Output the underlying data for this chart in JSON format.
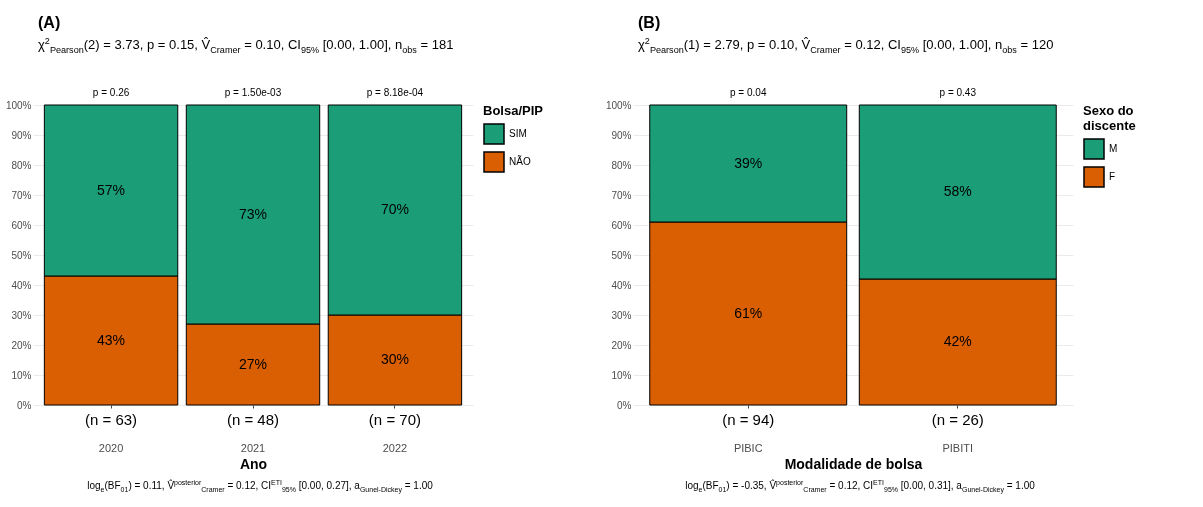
{
  "chart_data": [
    {
      "type": "bar",
      "title": "(A)",
      "subtitle": "χ$^{2}$$_{Pearson}$(2) = 3.73, p = 0.15, V̂$_{Cramer}$ = 0.10, CI$_{95%}$ [0.00, 1.00], n$_{obs}$ = 181",
      "xlabel": "Ano",
      "legend_title": "Bolsa/PIP",
      "categories": [
        "2020",
        "2021",
        "2022"
      ],
      "stacked": true,
      "series": [
        {
          "name": "NÃO",
          "color": "#d95f02",
          "values": [
            43,
            27,
            30
          ],
          "value_labels": [
            "43%",
            "27%",
            "30%"
          ]
        },
        {
          "name": "SIM",
          "color": "#1b9e77",
          "values": [
            57,
            73,
            70
          ],
          "value_labels": [
            "57%",
            "73%",
            "70%"
          ]
        }
      ],
      "ylim": [
        0,
        100
      ],
      "yticks": [
        {
          "value": 0,
          "label": "0%"
        },
        {
          "value": 10,
          "label": "10%"
        },
        {
          "value": 20,
          "label": "20%"
        },
        {
          "value": 30,
          "label": "30%"
        },
        {
          "value": 40,
          "label": "40%"
        },
        {
          "value": 50,
          "label": "50%"
        },
        {
          "value": 60,
          "label": "60%"
        },
        {
          "value": 70,
          "label": "70%"
        },
        {
          "value": 80,
          "label": "80%"
        },
        {
          "value": 90,
          "label": "90%"
        },
        {
          "value": 100,
          "label": "100%"
        }
      ],
      "grid": "y",
      "legend": "right",
      "annotations": [
        {
          "text": "p = 0.26",
          "x": "2020",
          "y": 100
        },
        {
          "text": "p = 1.50e-03",
          "x": "2021",
          "y": 100
        },
        {
          "text": "p = 8.18e-04",
          "x": "2022",
          "y": 100
        },
        {
          "text": "(n = 63)",
          "x": "2020",
          "y": 0
        },
        {
          "text": "(n = 48)",
          "x": "2021",
          "y": 0
        },
        {
          "text": "(n = 70)",
          "x": "2022",
          "y": 0
        },
        "log$_{e}$(BF$_{01}$) = 0.11, V̂$^{posterior}$$_{Cramer}$ = 0.12, CI$^{ETI}$$_{95%}$ [0.00, 0.27], a$_{Gunel-Dickey}$ = 1.00"
      ]
    },
    {
      "type": "bar",
      "title": "(B)",
      "subtitle": "χ$^{2}$$_{Pearson}$(1) = 2.79, p = 0.10, V̂$_{Cramer}$ = 0.12, CI$_{95%}$ [0.00, 1.00], n$_{obs}$ = 120",
      "xlabel": "Modalidade de bolsa",
      "legend_title": "Sexo do discente",
      "categories": [
        "PIBIC",
        "PIBITI"
      ],
      "stacked": true,
      "series": [
        {
          "name": "F",
          "color": "#d95f02",
          "values": [
            61,
            42
          ],
          "value_labels": [
            "61%",
            "42%"
          ]
        },
        {
          "name": "M",
          "color": "#1b9e77",
          "values": [
            39,
            58
          ],
          "value_labels": [
            "39%",
            "58%"
          ]
        }
      ],
      "ylim": [
        0,
        100
      ],
      "yticks": [
        {
          "value": 0,
          "label": "0%"
        },
        {
          "value": 10,
          "label": "10%"
        },
        {
          "value": 20,
          "label": "20%"
        },
        {
          "value": 30,
          "label": "30%"
        },
        {
          "value": 40,
          "label": "40%"
        },
        {
          "value": 50,
          "label": "50%"
        },
        {
          "value": 60,
          "label": "60%"
        },
        {
          "value": 70,
          "label": "70%"
        },
        {
          "value": 80,
          "label": "80%"
        },
        {
          "value": 90,
          "label": "90%"
        },
        {
          "value": 100,
          "label": "100%"
        }
      ],
      "grid": "y",
      "legend": "right",
      "annotations": [
        {
          "text": "p = 0.04",
          "x": "PIBIC",
          "y": 100
        },
        {
          "text": "p = 0.43",
          "x": "PIBITI",
          "y": 100
        },
        {
          "text": "(n = 94)",
          "x": "PIBIC",
          "y": 0
        },
        {
          "text": "(n = 26)",
          "x": "PIBITI",
          "y": 0
        },
        "log$_{e}$(BF$_{01}$) = -0.35, V̂$^{posterior}$$_{Cramer}$ = 0.12, CI$^{ETI}$$_{95%}$ [0.00, 0.31], a$_{Gunel-Dickey}$ = 1.00"
      ]
    }
  ]
}
